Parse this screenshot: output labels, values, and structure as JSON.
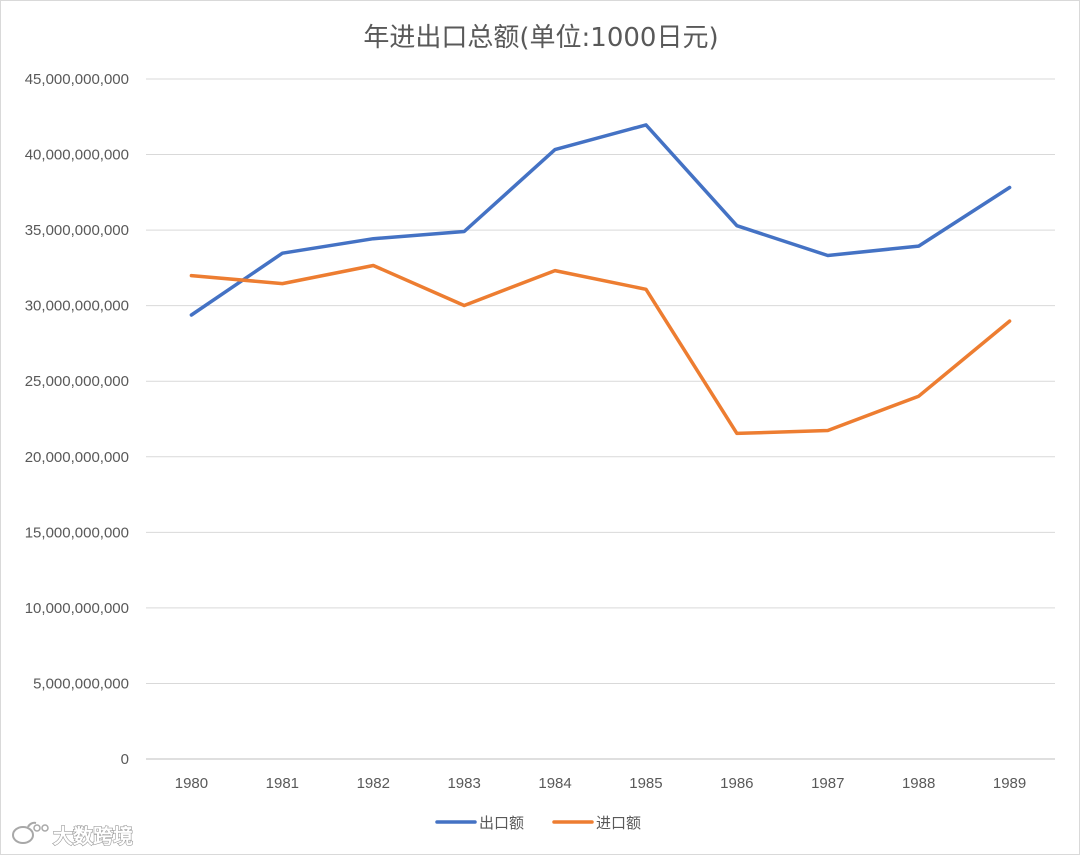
{
  "chart_data": {
    "type": "line",
    "title": "年进出口总额(单位:1000日元)",
    "xlabel": "",
    "ylabel": "",
    "categories": [
      "1980",
      "1981",
      "1982",
      "1983",
      "1984",
      "1985",
      "1986",
      "1987",
      "1988",
      "1989"
    ],
    "ylim": [
      0,
      45000000000
    ],
    "y_ticks": [
      0,
      5000000000,
      10000000000,
      15000000000,
      20000000000,
      25000000000,
      30000000000,
      35000000000,
      40000000000,
      45000000000
    ],
    "y_tick_labels": [
      "0",
      "5,000,000,000",
      "10,000,000,000",
      "15,000,000,000",
      "20,000,000,000",
      "25,000,000,000",
      "30,000,000,000",
      "35,000,000,000",
      "40,000,000,000",
      "45,000,000,000"
    ],
    "grid": true,
    "legend_position": "bottom",
    "series": [
      {
        "name": "出口额",
        "color": "#4472C4",
        "values": [
          29380000000,
          33470000000,
          34430000000,
          34910000000,
          40330000000,
          41960000000,
          35290000000,
          33320000000,
          33940000000,
          37820000000
        ]
      },
      {
        "name": "进口额",
        "color": "#ED7D31",
        "values": [
          31990000000,
          31460000000,
          32660000000,
          30010000000,
          32320000000,
          31080000000,
          21550000000,
          21740000000,
          24010000000,
          28980000000
        ]
      }
    ]
  },
  "watermark": {
    "text": "大数跨境",
    "icon": "weibo-logo-icon"
  }
}
